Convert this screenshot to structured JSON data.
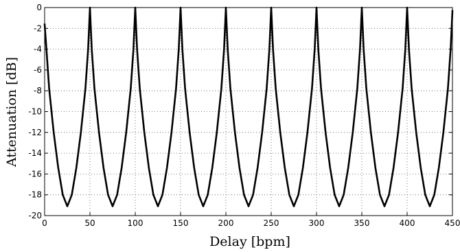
{
  "chart_data": {
    "type": "line",
    "title": "",
    "xlabel": "Delay [bpm]",
    "ylabel": "Attenuation [dB]",
    "xlim": [
      0,
      450
    ],
    "ylim": [
      -20,
      0
    ],
    "xticks": [
      0,
      50,
      100,
      150,
      200,
      250,
      300,
      350,
      400,
      450
    ],
    "yticks": [
      0,
      -2,
      -4,
      -6,
      -8,
      -10,
      -12,
      -14,
      -16,
      -18,
      -20
    ],
    "xtick_labels": [
      "0",
      "50",
      "100",
      "150",
      "200",
      "250",
      "300",
      "350",
      "400",
      "450"
    ],
    "ytick_labels": [
      "0",
      "-2",
      "-4",
      "-6",
      "-8",
      "-10",
      "-12",
      "-14",
      "-16",
      "-18",
      "-20"
    ],
    "grid": true,
    "grid_style": "dotted",
    "series": [
      {
        "color": "#000000",
        "x": [
          0,
          2,
          5,
          10,
          15,
          20,
          25,
          30,
          35,
          40,
          45,
          48,
          50,
          52,
          55,
          60,
          65,
          70,
          75,
          80,
          85,
          90,
          95,
          98,
          100,
          102,
          105,
          110,
          115,
          120,
          125,
          130,
          135,
          140,
          145,
          148,
          150,
          152,
          155,
          160,
          165,
          170,
          175,
          180,
          185,
          190,
          195,
          198,
          200,
          202,
          205,
          210,
          215,
          220,
          225,
          230,
          235,
          240,
          245,
          248,
          250,
          252,
          255,
          260,
          265,
          270,
          275,
          280,
          285,
          290,
          295,
          298,
          300,
          302,
          305,
          310,
          315,
          320,
          325,
          330,
          335,
          340,
          345,
          348,
          350,
          352,
          355,
          360,
          365,
          370,
          375,
          380,
          385,
          390,
          395,
          398,
          400,
          402,
          405,
          410,
          415,
          420,
          425,
          430,
          435,
          440,
          445,
          448,
          450
        ],
        "y": [
          -1.6,
          -4.0,
          -7.8,
          -12.0,
          -15.4,
          -18.0,
          -19.1,
          -18.0,
          -15.4,
          -12.0,
          -7.8,
          -4.0,
          0,
          -4.0,
          -7.8,
          -12.0,
          -15.4,
          -18.0,
          -19.1,
          -18.0,
          -15.4,
          -12.0,
          -7.8,
          -4.0,
          0,
          -4.0,
          -7.8,
          -12.0,
          -15.4,
          -18.0,
          -19.1,
          -18.0,
          -15.4,
          -12.0,
          -7.8,
          -4.0,
          0,
          -4.0,
          -7.8,
          -12.0,
          -15.4,
          -18.0,
          -19.1,
          -18.0,
          -15.4,
          -12.0,
          -7.8,
          -4.0,
          0,
          -4.0,
          -7.8,
          -12.0,
          -15.4,
          -18.0,
          -19.1,
          -18.0,
          -15.4,
          -12.0,
          -7.8,
          -4.0,
          0,
          -4.0,
          -7.8,
          -12.0,
          -15.4,
          -18.0,
          -19.1,
          -18.0,
          -15.4,
          -12.0,
          -7.8,
          -4.0,
          0,
          -4.0,
          -7.8,
          -12.0,
          -15.4,
          -18.0,
          -19.1,
          -18.0,
          -15.4,
          -12.0,
          -7.8,
          -4.0,
          0,
          -4.0,
          -7.8,
          -12.0,
          -15.4,
          -18.0,
          -19.1,
          -18.0,
          -15.4,
          -12.0,
          -7.8,
          -4.0,
          0,
          -4.0,
          -7.8,
          -12.0,
          -15.4,
          -18.0,
          -19.1,
          -18.0,
          -15.4,
          -12.0,
          -7.8,
          -4.0,
          -0.3
        ]
      }
    ]
  }
}
